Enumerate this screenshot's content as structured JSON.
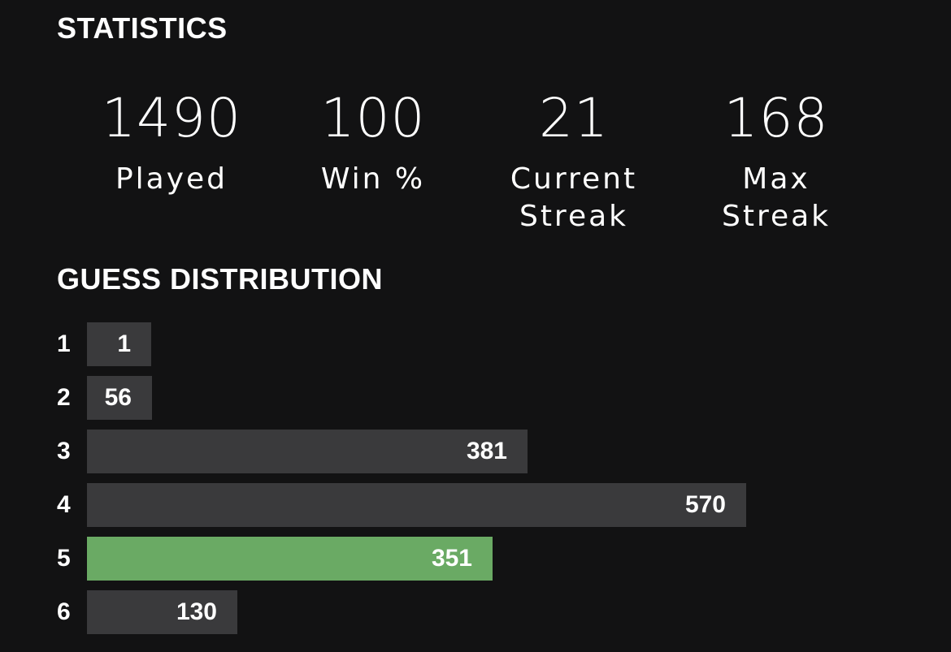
{
  "statistics": {
    "title": "STATISTICS",
    "items": [
      {
        "value": "1490",
        "label": "Played"
      },
      {
        "value": "100",
        "label": "Win %"
      },
      {
        "value": "21",
        "label": "Current\nStreak"
      },
      {
        "value": "168",
        "label": "Max\nStreak"
      }
    ]
  },
  "guess_distribution": {
    "title": "GUESS DISTRIBUTION",
    "highlight_color": "#6aaa64",
    "bar_color": "#3a3a3c",
    "rows": [
      {
        "guess": "1",
        "count": 1,
        "highlighted": false
      },
      {
        "guess": "2",
        "count": 56,
        "highlighted": false
      },
      {
        "guess": "3",
        "count": 381,
        "highlighted": false
      },
      {
        "guess": "4",
        "count": 570,
        "highlighted": false
      },
      {
        "guess": "5",
        "count": 351,
        "highlighted": true
      },
      {
        "guess": "6",
        "count": 130,
        "highlighted": false
      }
    ]
  },
  "chart_data": {
    "type": "bar",
    "orientation": "horizontal",
    "categories": [
      "1",
      "2",
      "3",
      "4",
      "5",
      "6"
    ],
    "values": [
      1,
      56,
      381,
      570,
      351,
      130
    ],
    "title": "GUESS DISTRIBUTION"
  }
}
